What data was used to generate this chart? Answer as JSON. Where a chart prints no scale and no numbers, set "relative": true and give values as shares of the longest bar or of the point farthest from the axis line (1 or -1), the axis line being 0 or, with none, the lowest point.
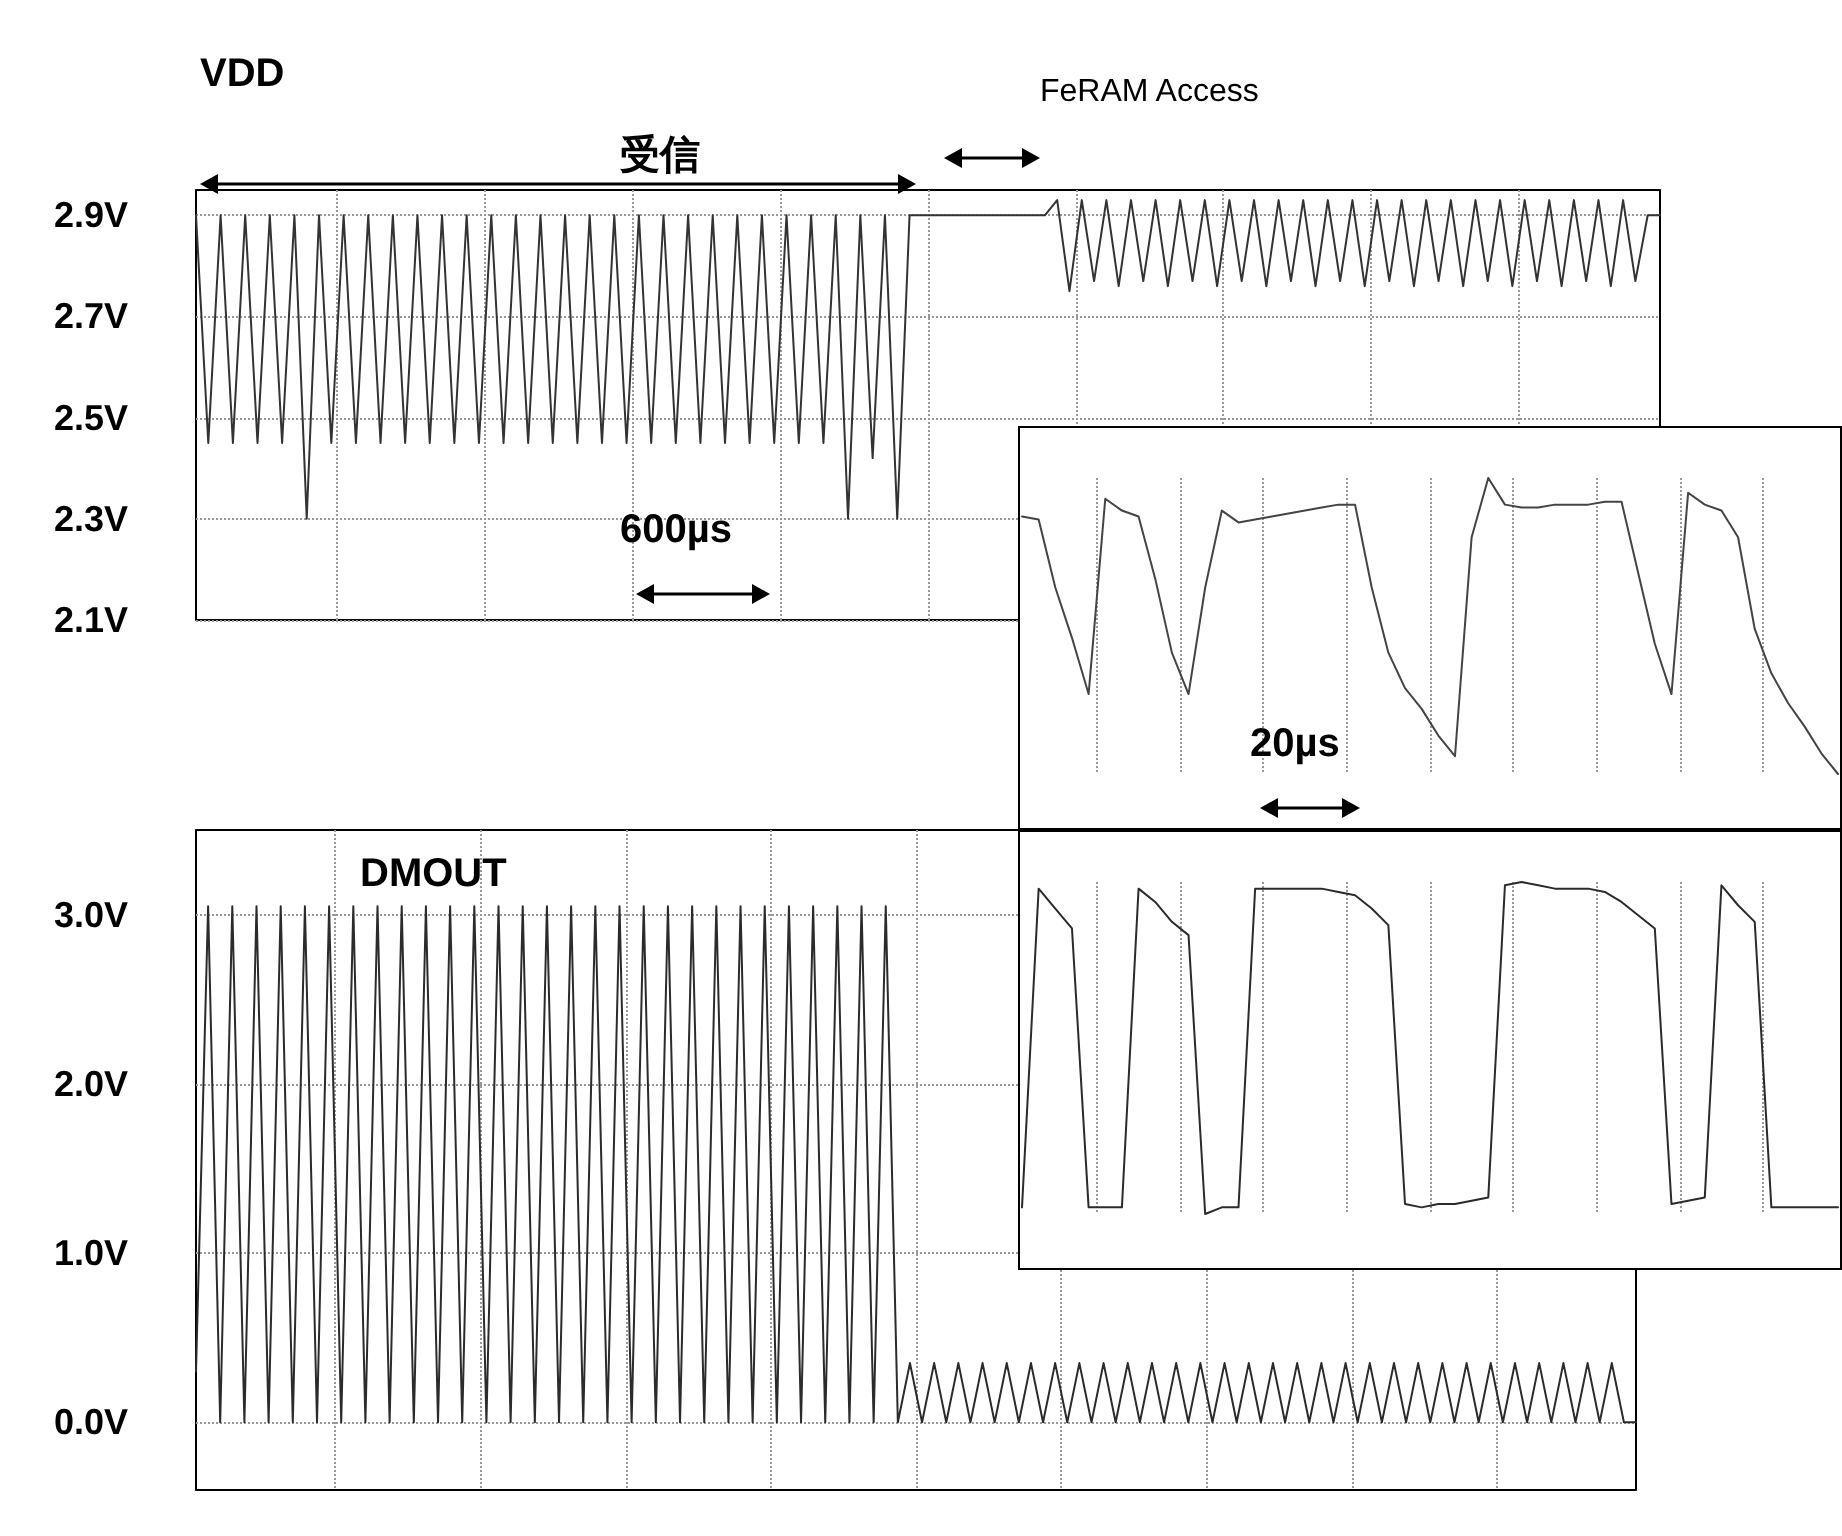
{
  "chart_data": [
    {
      "type": "line",
      "title": "VDD",
      "annotations": [
        "受信",
        "FeRAM Access",
        "600µs"
      ],
      "color": "#333333",
      "marker": "none",
      "grid": true,
      "ylim": [
        2.1,
        2.95
      ],
      "yticks": [
        {
          "value": 2.1,
          "label": "2.1V"
        },
        {
          "value": 2.3,
          "label": "2.3V"
        },
        {
          "value": 2.5,
          "label": "2.5V"
        },
        {
          "value": 2.7,
          "label": "2.7V"
        },
        {
          "value": 2.9,
          "label": "2.9V"
        }
      ],
      "categories": [
        null,
        null,
        null,
        null,
        null,
        null,
        null,
        null,
        null,
        null,
        null,
        null,
        null,
        null,
        null,
        null,
        null,
        null,
        null,
        null,
        null,
        null,
        null,
        null,
        null,
        null,
        null,
        null,
        null,
        null,
        null,
        null,
        null,
        null,
        null,
        null,
        null,
        null,
        null,
        null,
        null,
        null,
        null,
        null,
        null,
        null,
        null,
        null,
        null,
        null,
        null,
        null,
        null,
        null,
        null,
        null,
        null,
        null,
        null,
        null,
        null,
        null,
        null,
        null,
        null,
        null,
        null,
        null,
        null,
        null,
        null,
        null,
        null,
        null,
        null,
        null,
        null,
        null,
        null,
        null,
        null,
        null,
        null,
        null,
        null,
        null,
        null,
        null,
        null,
        null,
        null,
        null,
        null,
        null,
        null,
        null,
        null,
        null,
        null,
        null,
        null,
        null,
        null,
        null,
        null,
        null,
        null,
        null,
        null,
        null,
        null,
        null,
        null,
        null,
        null,
        null,
        null,
        null,
        null,
        null
      ],
      "values": [
        2.9,
        2.45,
        2.9,
        2.45,
        2.9,
        2.45,
        2.9,
        2.45,
        2.9,
        2.3,
        2.9,
        2.45,
        2.9,
        2.45,
        2.9,
        2.45,
        2.9,
        2.45,
        2.9,
        2.45,
        2.9,
        2.45,
        2.9,
        2.45,
        2.9,
        2.45,
        2.9,
        2.45,
        2.9,
        2.45,
        2.9,
        2.45,
        2.9,
        2.45,
        2.9,
        2.45,
        2.9,
        2.45,
        2.9,
        2.45,
        2.9,
        2.45,
        2.9,
        2.45,
        2.9,
        2.45,
        2.9,
        2.45,
        2.9,
        2.45,
        2.9,
        2.45,
        2.9,
        2.3,
        2.9,
        2.42,
        2.9,
        2.3,
        2.9,
        2.9,
        2.9,
        2.9,
        2.9,
        2.9,
        2.9,
        2.9,
        2.9,
        2.9,
        2.9,
        2.9,
        2.93,
        2.75,
        2.93,
        2.77,
        2.93,
        2.76,
        2.93,
        2.77,
        2.93,
        2.76,
        2.93,
        2.77,
        2.93,
        2.76,
        2.93,
        2.77,
        2.93,
        2.76,
        2.93,
        2.77,
        2.93,
        2.76,
        2.93,
        2.77,
        2.93,
        2.76,
        2.93,
        2.77,
        2.93,
        2.76,
        2.93,
        2.77,
        2.93,
        2.76,
        2.93,
        2.77,
        2.93,
        2.76,
        2.93,
        2.77,
        2.93,
        2.76,
        2.93,
        2.77,
        2.93,
        2.76,
        2.93,
        2.77,
        2.9,
        2.9
      ]
    },
    {
      "type": "line",
      "title": "DMOUT",
      "color": "#2b2b2b",
      "marker": "none",
      "grid": true,
      "ylim": [
        -0.4,
        3.5
      ],
      "yticks": [
        {
          "value": 0,
          "label": "0.0V"
        },
        {
          "value": 1,
          "label": "1.0V"
        },
        {
          "value": 2,
          "label": "2.0V"
        },
        {
          "value": 3,
          "label": "3.0V"
        }
      ],
      "categories": [
        null,
        null,
        null,
        null,
        null,
        null,
        null,
        null,
        null,
        null,
        null,
        null,
        null,
        null,
        null,
        null,
        null,
        null,
        null,
        null,
        null,
        null,
        null,
        null,
        null,
        null,
        null,
        null,
        null,
        null,
        null,
        null,
        null,
        null,
        null,
        null,
        null,
        null,
        null,
        null,
        null,
        null,
        null,
        null,
        null,
        null,
        null,
        null,
        null,
        null,
        null,
        null,
        null,
        null,
        null,
        null,
        null,
        null,
        null,
        null,
        null,
        null,
        null,
        null,
        null,
        null,
        null,
        null,
        null,
        null,
        null,
        null,
        null,
        null,
        null,
        null,
        null,
        null,
        null,
        null,
        null,
        null,
        null,
        null,
        null,
        null,
        null,
        null,
        null,
        null,
        null,
        null,
        null,
        null,
        null,
        null,
        null,
        null,
        null,
        null,
        null,
        null,
        null,
        null,
        null,
        null,
        null,
        null,
        null,
        null,
        null,
        null,
        null,
        null,
        null,
        null,
        null,
        null,
        null,
        null
      ],
      "values": [
        0.3,
        3.05,
        0,
        3.05,
        0,
        3.05,
        0,
        3.05,
        0,
        3.05,
        0,
        3.05,
        0,
        3.05,
        0,
        3.05,
        0,
        3.05,
        0,
        3.05,
        0,
        3.05,
        0,
        3.05,
        0,
        3.05,
        0,
        3.05,
        0,
        3.05,
        0,
        3.05,
        0,
        3.05,
        0,
        3.05,
        0,
        3.05,
        0,
        3.05,
        0,
        3.05,
        0,
        3.05,
        0,
        3.05,
        0,
        3.05,
        0,
        3.05,
        0,
        3.05,
        0,
        3.05,
        0,
        3.05,
        0,
        3.05,
        0,
        0.35,
        0,
        0.35,
        0,
        0.35,
        0,
        0.35,
        0,
        0.35,
        0,
        0.35,
        0,
        0.35,
        0,
        0.35,
        0,
        0.35,
        0,
        0.35,
        0,
        0.35,
        0,
        0.35,
        0,
        0.35,
        0,
        0.35,
        0,
        0.35,
        0,
        0.35,
        0,
        0.35,
        0,
        0.35,
        0,
        0.35,
        0,
        0.35,
        0,
        0.35,
        0,
        0.35,
        0,
        0.35,
        0,
        0.35,
        0,
        0.35,
        0,
        0.35,
        0,
        0.35,
        0,
        0.35,
        0,
        0.35,
        0,
        0.35,
        0,
        0
      ]
    },
    {
      "type": "line",
      "relative": true,
      "color": "#444444",
      "marker": "none",
      "grid": "x",
      "annotations": [
        "20µs"
      ],
      "categories": [
        null,
        null,
        null,
        null,
        null,
        null,
        null,
        null,
        null,
        null,
        null,
        null,
        null,
        null,
        null,
        null,
        null,
        null,
        null,
        null,
        null,
        null,
        null,
        null,
        null,
        null,
        null,
        null,
        null,
        null,
        null,
        null,
        null,
        null,
        null,
        null,
        null,
        null,
        null,
        null,
        null,
        null,
        null,
        null,
        null,
        null,
        null,
        null,
        null,
        null
      ],
      "values": [
        0.87,
        0.86,
        0.63,
        0.46,
        0.27,
        0.93,
        0.89,
        0.87,
        0.66,
        0.41,
        0.27,
        0.63,
        0.89,
        0.85,
        0.86,
        0.87,
        0.88,
        0.89,
        0.9,
        0.91,
        0.91,
        0.63,
        0.41,
        0.29,
        0.22,
        0.13,
        0.06,
        0.8,
        1.0,
        0.91,
        0.9,
        0.9,
        0.91,
        0.91,
        0.91,
        0.92,
        0.92,
        0.68,
        0.44,
        0.27,
        0.95,
        0.91,
        0.89,
        0.8,
        0.49,
        0.34,
        0.24,
        0.16,
        0.07,
        0.0
      ]
    },
    {
      "type": "line",
      "relative": true,
      "color": "#2b2b2b",
      "marker": "none",
      "grid": "x",
      "categories": [
        null,
        null,
        null,
        null,
        null,
        null,
        null,
        null,
        null,
        null,
        null,
        null,
        null,
        null,
        null,
        null,
        null,
        null,
        null,
        null,
        null,
        null,
        null,
        null,
        null,
        null,
        null,
        null,
        null,
        null,
        null,
        null,
        null,
        null,
        null,
        null,
        null,
        null,
        null,
        null,
        null,
        null,
        null,
        null,
        null,
        null,
        null,
        null,
        null,
        null
      ],
      "values": [
        0.02,
        0.98,
        0.92,
        0.86,
        0.02,
        0.02,
        0.02,
        0.98,
        0.94,
        0.88,
        0.84,
        0.0,
        0.02,
        0.02,
        0.98,
        0.98,
        0.98,
        0.98,
        0.98,
        0.97,
        0.96,
        0.92,
        0.87,
        0.03,
        0.02,
        0.03,
        0.03,
        0.04,
        0.05,
        0.99,
        1.0,
        0.99,
        0.98,
        0.98,
        0.98,
        0.97,
        0.94,
        0.9,
        0.86,
        0.03,
        0.04,
        0.05,
        0.99,
        0.93,
        0.88,
        0.02,
        0.02,
        0.02,
        0.02,
        0.02
      ]
    }
  ]
}
